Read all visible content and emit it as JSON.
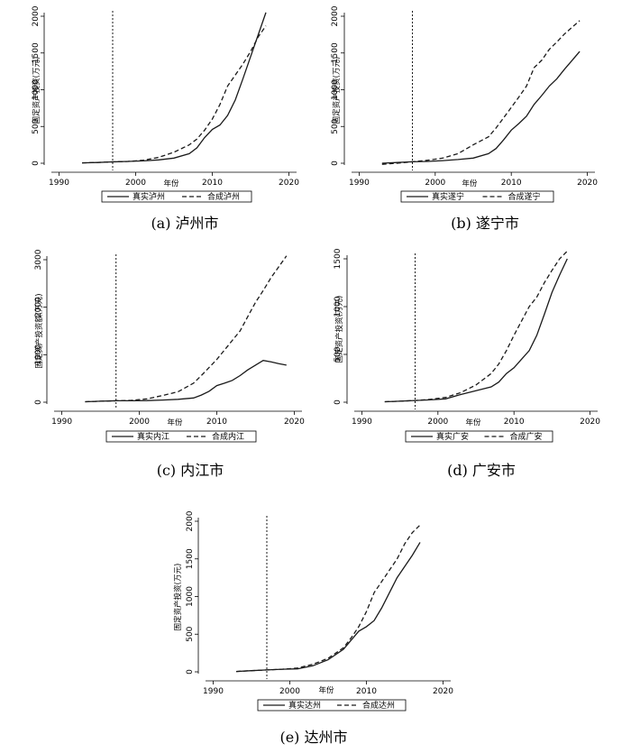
{
  "chart_data": [
    {
      "type": "line",
      "caption": "(a) 泸州市",
      "xlabel": "年份",
      "ylabel": "固定资产投资(万元)",
      "xlim": [
        1989,
        2021
      ],
      "ylim": [
        0,
        2000
      ],
      "xticks": [
        1990,
        2000,
        2010,
        2020
      ],
      "yticks": [
        0,
        500,
        1000,
        1500,
        2000
      ],
      "treatment_year": 1997,
      "x": [
        1993,
        1995,
        1997,
        1999,
        2001,
        2003,
        2005,
        2007,
        2008,
        2009,
        2010,
        2011,
        2012,
        2013,
        2014,
        2015,
        2016,
        2017
      ],
      "series": [
        {
          "name": "真实泸州",
          "style": "solid",
          "values": [
            5,
            10,
            18,
            25,
            32,
            45,
            70,
            130,
            210,
            350,
            460,
            520,
            650,
            860,
            1150,
            1450,
            1750,
            2050
          ]
        },
        {
          "name": "合成泸州",
          "style": "dashed",
          "values": [
            5,
            10,
            18,
            25,
            40,
            80,
            150,
            250,
            330,
            450,
            600,
            800,
            1050,
            1200,
            1350,
            1520,
            1720,
            1870
          ]
        }
      ]
    },
    {
      "type": "line",
      "caption": "(b) 遂宁市",
      "xlabel": "年份",
      "ylabel": "固定资产投资(万元)",
      "xlim": [
        1989,
        2021
      ],
      "ylim": [
        0,
        2000
      ],
      "xticks": [
        1990,
        2000,
        2010,
        2020
      ],
      "yticks": [
        0,
        500,
        1000,
        1500,
        2000
      ],
      "treatment_year": 1997,
      "x": [
        1993,
        1995,
        1997,
        1999,
        2001,
        2003,
        2005,
        2007,
        2008,
        2009,
        2010,
        2011,
        2012,
        2013,
        2014,
        2015,
        2016,
        2017,
        2018,
        2019
      ],
      "series": [
        {
          "name": "真实遂宁",
          "style": "solid",
          "values": [
            0,
            10,
            20,
            25,
            35,
            50,
            70,
            130,
            200,
            320,
            450,
            540,
            640,
            800,
            920,
            1050,
            1150,
            1280,
            1400,
            1520
          ]
        },
        {
          "name": "合成遂宁",
          "style": "dashed",
          "values": [
            -15,
            0,
            20,
            40,
            70,
            130,
            250,
            360,
            480,
            620,
            760,
            900,
            1050,
            1300,
            1400,
            1550,
            1650,
            1760,
            1850,
            1940
          ]
        }
      ]
    },
    {
      "type": "line",
      "caption": "(c) 内江市",
      "xlabel": "年份",
      "ylabel": "固定资产投资额(万元)",
      "xlim": [
        1989,
        2021
      ],
      "ylim": [
        0,
        3000
      ],
      "xticks": [
        1990,
        2000,
        2010,
        2020
      ],
      "yticks": [
        0,
        1000,
        2000,
        3000
      ],
      "treatment_year": 1997,
      "x": [
        1993,
        1995,
        1997,
        1999,
        2001,
        2003,
        2005,
        2007,
        2008,
        2009,
        2010,
        2011,
        2012,
        2013,
        2014,
        2015,
        2016,
        2017,
        2018,
        2019
      ],
      "series": [
        {
          "name": "真实内江",
          "style": "solid",
          "values": [
            10,
            20,
            30,
            30,
            35,
            45,
            60,
            90,
            150,
            230,
            350,
            400,
            460,
            560,
            680,
            780,
            880,
            850,
            810,
            780
          ]
        },
        {
          "name": "合成内江",
          "style": "dashed",
          "values": [
            10,
            20,
            30,
            40,
            70,
            140,
            220,
            400,
            560,
            730,
            900,
            1100,
            1300,
            1500,
            1800,
            2100,
            2350,
            2620,
            2850,
            3080
          ]
        }
      ]
    },
    {
      "type": "line",
      "caption": "(d) 广安市",
      "xlabel": "年份",
      "ylabel": "固定资产投资(万元)",
      "xlim": [
        1989,
        2021
      ],
      "ylim": [
        0,
        1500
      ],
      "xticks": [
        1990,
        2000,
        2010,
        2020
      ],
      "yticks": [
        0,
        500,
        1000,
        1500
      ],
      "treatment_year": 1997,
      "x": [
        1993,
        1995,
        1997,
        1999,
        2001,
        2003,
        2005,
        2007,
        2008,
        2009,
        2010,
        2011,
        2012,
        2013,
        2014,
        2015,
        2016,
        2017
      ],
      "series": [
        {
          "name": "真实广安",
          "style": "solid",
          "values": [
            5,
            10,
            18,
            25,
            35,
            80,
            120,
            160,
            210,
            300,
            360,
            450,
            540,
            700,
            920,
            1150,
            1330,
            1500
          ]
        },
        {
          "name": "合成广安",
          "style": "dashed",
          "values": [
            5,
            10,
            18,
            30,
            50,
            100,
            180,
            300,
            400,
            540,
            700,
            850,
            1000,
            1100,
            1250,
            1380,
            1500,
            1580
          ]
        }
      ]
    },
    {
      "type": "line",
      "caption": "(e) 达州市",
      "xlabel": "年份",
      "ylabel": "固定资产投资(万元)",
      "xlim": [
        1989,
        2021
      ],
      "ylim": [
        0,
        2000
      ],
      "xticks": [
        1990,
        2000,
        2010,
        2020
      ],
      "yticks": [
        0,
        500,
        1000,
        1500,
        2000
      ],
      "treatment_year": 1997,
      "x": [
        1993,
        1995,
        1997,
        1999,
        2001,
        2003,
        2005,
        2007,
        2008,
        2009,
        2010,
        2011,
        2012,
        2013,
        2014,
        2015,
        2016,
        2017
      ],
      "series": [
        {
          "name": "真实达州",
          "style": "solid",
          "values": [
            5,
            15,
            25,
            35,
            40,
            80,
            160,
            300,
            420,
            540,
            600,
            680,
            850,
            1050,
            1250,
            1400,
            1550,
            1720
          ]
        },
        {
          "name": "合成达州",
          "style": "dashed",
          "values": [
            5,
            15,
            25,
            35,
            50,
            100,
            180,
            320,
            450,
            600,
            800,
            1050,
            1200,
            1350,
            1500,
            1700,
            1850,
            1950
          ]
        }
      ]
    }
  ]
}
